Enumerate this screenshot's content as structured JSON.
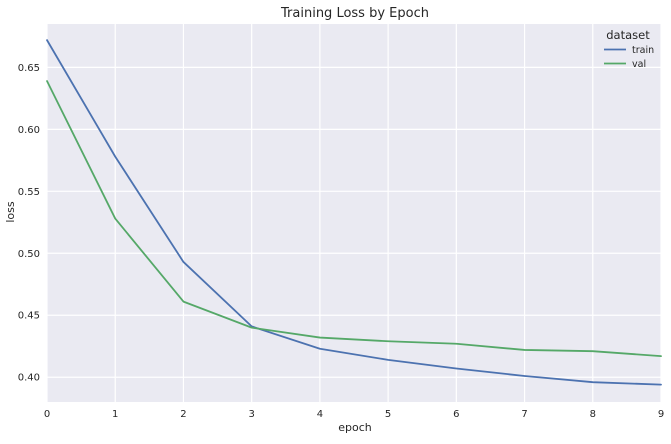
{
  "chart_data": {
    "type": "line",
    "title": "Training Loss by Epoch",
    "xlabel": "epoch",
    "ylabel": "loss",
    "x": [
      0,
      1,
      2,
      3,
      4,
      5,
      6,
      7,
      8,
      9
    ],
    "xlim": [
      0,
      9
    ],
    "ylim": [
      0.38,
      0.685
    ],
    "yticks": [
      "0.40",
      "0.45",
      "0.50",
      "0.55",
      "0.60",
      "0.65"
    ],
    "xticks": [
      "0",
      "1",
      "2",
      "3",
      "4",
      "5",
      "6",
      "7",
      "8",
      "9"
    ],
    "grid": true,
    "legend": {
      "title": "dataset",
      "placement": "top-right"
    },
    "series": [
      {
        "name": "train",
        "color": "#4c72b0",
        "values": [
          0.672,
          0.578,
          0.493,
          0.441,
          0.423,
          0.414,
          0.407,
          0.401,
          0.396,
          0.394
        ]
      },
      {
        "name": "val",
        "color": "#55a868",
        "values": [
          0.639,
          0.528,
          0.461,
          0.44,
          0.432,
          0.429,
          0.427,
          0.422,
          0.421,
          0.417
        ]
      }
    ]
  },
  "colors": {
    "plot_background": "#eaeaf2",
    "grid": "#ffffff"
  }
}
